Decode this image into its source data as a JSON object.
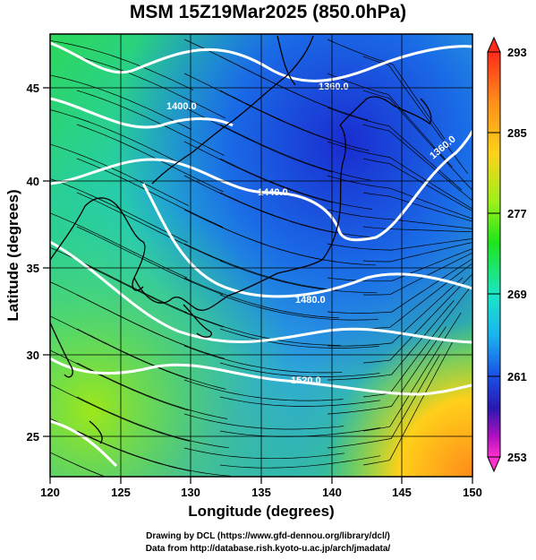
{
  "title": "MSM 15Z19Mar2025 (850.0hPa)",
  "credits": {
    "line1": "Drawing by DCL (https://www.gfd-dennou.org/library/dcl/)",
    "line2": "Data from http://database.rish.kyoto-u.ac.jp/arch/jmadata/"
  },
  "axes": {
    "xlabel": "Longitude (degrees)",
    "ylabel": "Latitude  (degrees)",
    "xticks": [
      "120",
      "125",
      "130",
      "135",
      "140",
      "145",
      "150"
    ],
    "yticks": [
      "25",
      "30",
      "35",
      "40",
      "45"
    ]
  },
  "colorbar": {
    "labels": [
      "293",
      "285",
      "277",
      "269",
      "261",
      "253"
    ],
    "colors": [
      "#ff2a1a",
      "#ff8c1a",
      "#ffd21a",
      "#9ef01a",
      "#1ee61a",
      "#1ae6c8",
      "#1ab4f0",
      "#1a64e6",
      "#1a28c8",
      "#3a10a0",
      "#b010c0",
      "#ff30d0"
    ]
  },
  "contours": {
    "labels": [
      "1360.0",
      "1400.0",
      "1360.0",
      "1440.0",
      "1480.0",
      "1520.0"
    ]
  },
  "colors": {
    "contour": "#ffffff",
    "coast": "#000000",
    "streamline": "#000000"
  }
}
